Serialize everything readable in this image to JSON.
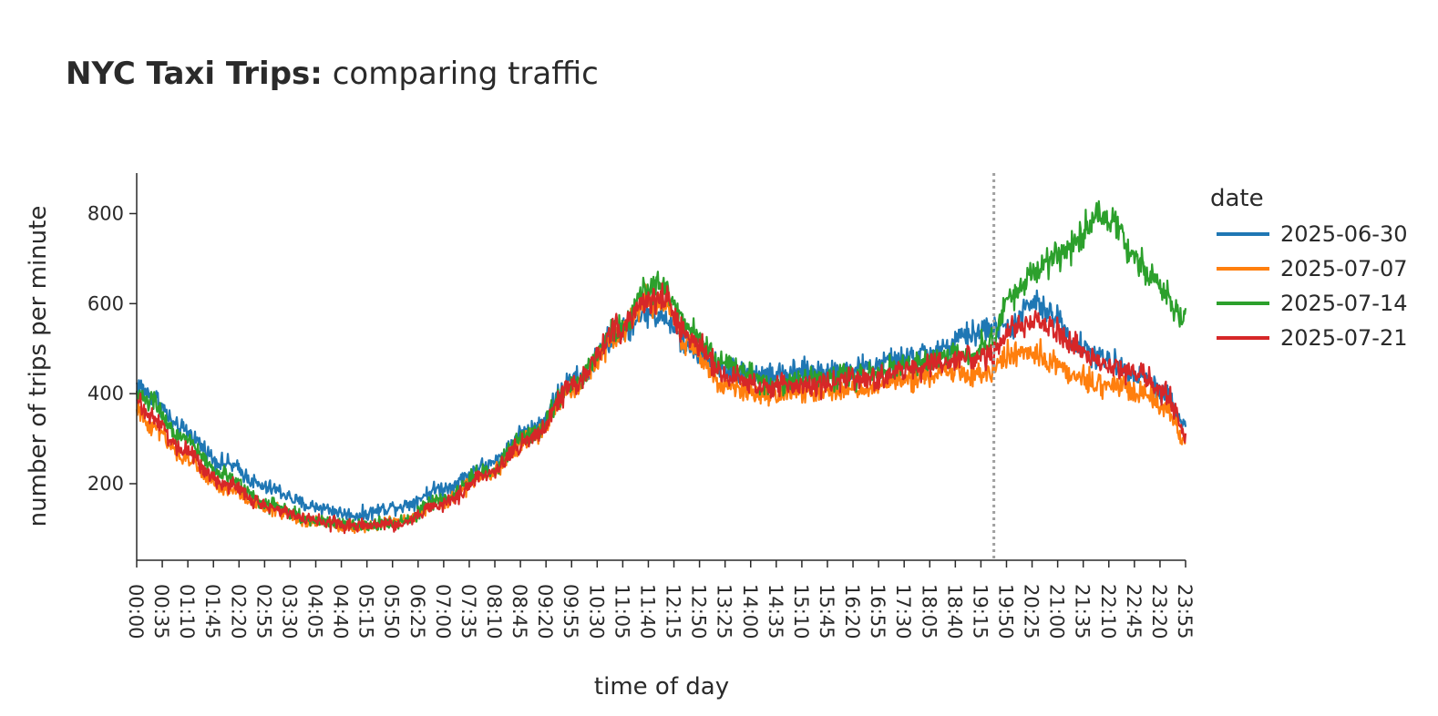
{
  "chart_data": {
    "type": "line",
    "title_bold": "NYC Taxi Trips:",
    "title_rest": " comparing traffic",
    "xlabel": "time of day",
    "ylabel": "number of trips per minute",
    "ylim": [
      30,
      890
    ],
    "yticks": [
      200,
      400,
      600,
      800
    ],
    "xlim_minutes": [
      0,
      1439
    ],
    "xtick_labels": [
      "00:00",
      "00:35",
      "01:10",
      "01:45",
      "02:20",
      "02:55",
      "03:30",
      "04:05",
      "04:40",
      "05:15",
      "05:50",
      "06:25",
      "07:00",
      "07:35",
      "08:10",
      "08:45",
      "09:20",
      "09:55",
      "10:30",
      "11:05",
      "11:40",
      "12:15",
      "12:50",
      "13:25",
      "14:00",
      "14:35",
      "15:10",
      "15:45",
      "16:20",
      "16:55",
      "17:30",
      "18:05",
      "18:40",
      "19:15",
      "19:50",
      "20:25",
      "21:00",
      "21:35",
      "22:10",
      "22:45",
      "23:20",
      "23:55"
    ],
    "vline_minute": 1176,
    "legend_title": "date",
    "legend_position": "right",
    "series": [
      {
        "name": "2025-06-30",
        "color": "#1f77b4",
        "noise": 22,
        "keypoints": [
          [
            0,
            420
          ],
          [
            20,
            395
          ],
          [
            60,
            320
          ],
          [
            120,
            245
          ],
          [
            180,
            190
          ],
          [
            240,
            150
          ],
          [
            300,
            130
          ],
          [
            360,
            150
          ],
          [
            420,
            190
          ],
          [
            480,
            240
          ],
          [
            540,
            320
          ],
          [
            600,
            430
          ],
          [
            660,
            530
          ],
          [
            700,
            580
          ],
          [
            720,
            570
          ],
          [
            760,
            500
          ],
          [
            810,
            455
          ],
          [
            870,
            440
          ],
          [
            930,
            450
          ],
          [
            990,
            455
          ],
          [
            1050,
            475
          ],
          [
            1110,
            500
          ],
          [
            1140,
            530
          ],
          [
            1170,
            545
          ],
          [
            1200,
            550
          ],
          [
            1230,
            600
          ],
          [
            1260,
            570
          ],
          [
            1290,
            510
          ],
          [
            1320,
            480
          ],
          [
            1350,
            460
          ],
          [
            1380,
            440
          ],
          [
            1410,
            400
          ],
          [
            1439,
            330
          ]
        ]
      },
      {
        "name": "2025-07-07",
        "color": "#ff7f0e",
        "noise": 22,
        "keypoints": [
          [
            0,
            360
          ],
          [
            20,
            330
          ],
          [
            60,
            260
          ],
          [
            120,
            190
          ],
          [
            180,
            145
          ],
          [
            240,
            115
          ],
          [
            300,
            105
          ],
          [
            360,
            115
          ],
          [
            420,
            160
          ],
          [
            480,
            220
          ],
          [
            540,
            300
          ],
          [
            600,
            410
          ],
          [
            660,
            530
          ],
          [
            700,
            605
          ],
          [
            720,
            610
          ],
          [
            760,
            500
          ],
          [
            810,
            410
          ],
          [
            870,
            400
          ],
          [
            930,
            405
          ],
          [
            990,
            410
          ],
          [
            1050,
            430
          ],
          [
            1110,
            445
          ],
          [
            1140,
            450
          ],
          [
            1170,
            445
          ],
          [
            1200,
            490
          ],
          [
            1230,
            490
          ],
          [
            1260,
            470
          ],
          [
            1290,
            440
          ],
          [
            1320,
            420
          ],
          [
            1350,
            415
          ],
          [
            1380,
            400
          ],
          [
            1410,
            370
          ],
          [
            1439,
            290
          ]
        ]
      },
      {
        "name": "2025-07-14",
        "color": "#2ca02c",
        "noise": 22,
        "keypoints": [
          [
            0,
            400
          ],
          [
            20,
            380
          ],
          [
            60,
            300
          ],
          [
            120,
            220
          ],
          [
            180,
            155
          ],
          [
            240,
            120
          ],
          [
            300,
            105
          ],
          [
            360,
            115
          ],
          [
            420,
            165
          ],
          [
            480,
            230
          ],
          [
            540,
            310
          ],
          [
            600,
            420
          ],
          [
            660,
            540
          ],
          [
            700,
            630
          ],
          [
            720,
            650
          ],
          [
            760,
            540
          ],
          [
            810,
            460
          ],
          [
            870,
            420
          ],
          [
            930,
            430
          ],
          [
            990,
            440
          ],
          [
            1050,
            460
          ],
          [
            1110,
            480
          ],
          [
            1140,
            490
          ],
          [
            1170,
            510
          ],
          [
            1200,
            620
          ],
          [
            1230,
            660
          ],
          [
            1260,
            700
          ],
          [
            1290,
            740
          ],
          [
            1320,
            800
          ],
          [
            1340,
            780
          ],
          [
            1370,
            700
          ],
          [
            1400,
            640
          ],
          [
            1439,
            560
          ]
        ]
      },
      {
        "name": "2025-07-21",
        "color": "#d62728",
        "noise": 22,
        "keypoints": [
          [
            0,
            380
          ],
          [
            20,
            350
          ],
          [
            60,
            280
          ],
          [
            120,
            200
          ],
          [
            180,
            150
          ],
          [
            240,
            120
          ],
          [
            300,
            105
          ],
          [
            360,
            110
          ],
          [
            420,
            155
          ],
          [
            480,
            220
          ],
          [
            540,
            300
          ],
          [
            600,
            420
          ],
          [
            660,
            540
          ],
          [
            700,
            610
          ],
          [
            720,
            615
          ],
          [
            760,
            520
          ],
          [
            810,
            440
          ],
          [
            870,
            415
          ],
          [
            930,
            420
          ],
          [
            990,
            430
          ],
          [
            1050,
            450
          ],
          [
            1110,
            470
          ],
          [
            1140,
            480
          ],
          [
            1170,
            480
          ],
          [
            1200,
            540
          ],
          [
            1230,
            560
          ],
          [
            1260,
            540
          ],
          [
            1290,
            500
          ],
          [
            1320,
            470
          ],
          [
            1350,
            455
          ],
          [
            1380,
            440
          ],
          [
            1410,
            400
          ],
          [
            1439,
            310
          ]
        ]
      }
    ]
  }
}
